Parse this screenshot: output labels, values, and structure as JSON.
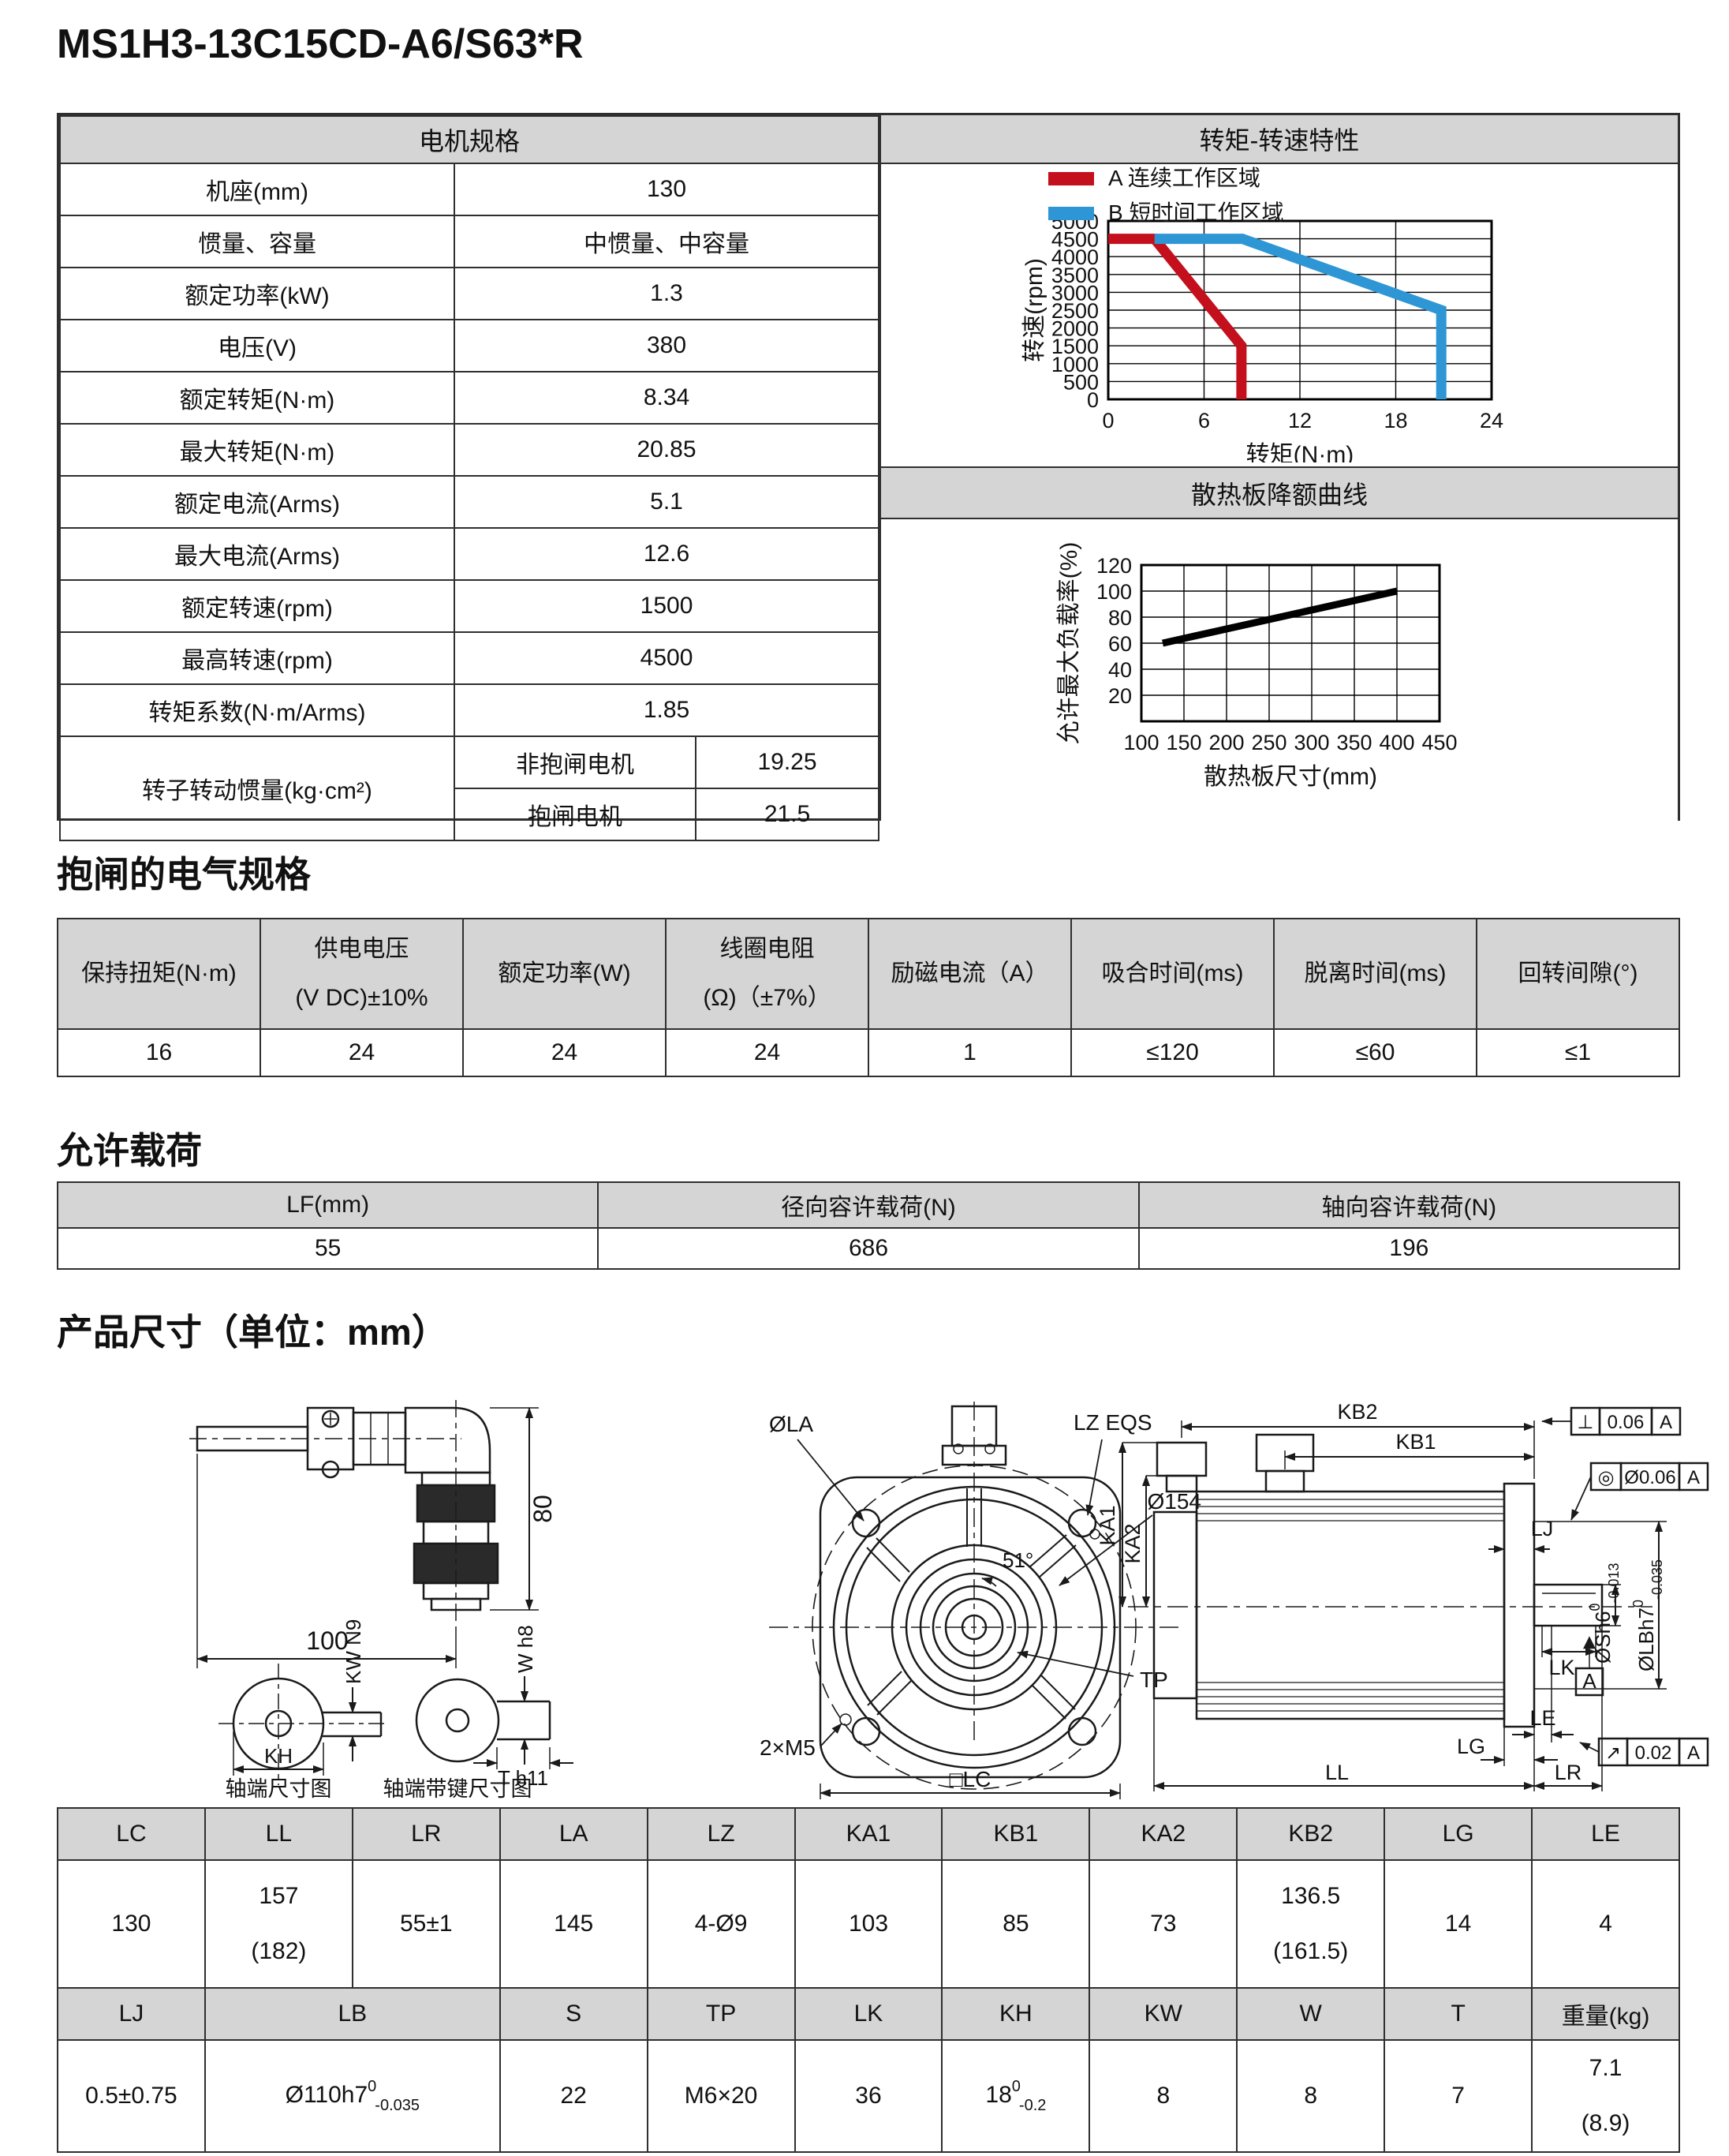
{
  "page_title": "MS1H3-13C15CD-A6/S63*R",
  "motor_spec": {
    "header": "电机规格",
    "rows": [
      {
        "label": "机座(mm)",
        "value": "130"
      },
      {
        "label": "惯量、容量",
        "value": "中惯量、中容量"
      },
      {
        "label": "额定功率(kW)",
        "value": "1.3"
      },
      {
        "label": "电压(V)",
        "value": "380"
      },
      {
        "label": "额定转矩(N·m)",
        "value": "8.34"
      },
      {
        "label": "最大转矩(N·m)",
        "value": "20.85"
      },
      {
        "label": "额定电流(Arms)",
        "value": "5.1"
      },
      {
        "label": "最大电流(Arms)",
        "value": "12.6"
      },
      {
        "label": "额定转速(rpm)",
        "value": "1500"
      },
      {
        "label": "最高转速(rpm)",
        "value": "4500"
      },
      {
        "label": "转矩系数(N·m/Arms)",
        "value": "1.85"
      }
    ],
    "inertia": {
      "label": "转子转动惯量(kg·cm²)",
      "rows": [
        {
          "label": "非抱闸电机",
          "value": "19.25"
        },
        {
          "label": "抱闸电机",
          "value": "21.5"
        }
      ]
    }
  },
  "chart_data": [
    {
      "type": "line",
      "title": "转矩-转速特性",
      "xlabel": "转矩(N·m)",
      "ylabel": "转速(rpm)",
      "xlim": [
        0,
        24
      ],
      "ylim": [
        0,
        5000
      ],
      "xticks": [
        0,
        6,
        12,
        18,
        24
      ],
      "yticks": [
        0,
        500,
        1000,
        1500,
        2000,
        2500,
        3000,
        3500,
        4000,
        4500,
        5000
      ],
      "grid": true,
      "legend_position": "top-left",
      "series": [
        {
          "name": "A 连续工作区域",
          "color": "#c3101c",
          "points": [
            [
              0,
              4500
            ],
            [
              2.9,
              4500
            ],
            [
              8.34,
              1500
            ],
            [
              8.34,
              0
            ]
          ]
        },
        {
          "name": "B 短时间工作区域",
          "color": "#2e96d4",
          "points": [
            [
              2.9,
              4500
            ],
            [
              8.4,
              4500
            ],
            [
              20.85,
              2500
            ],
            [
              20.85,
              0
            ]
          ]
        }
      ]
    },
    {
      "type": "line",
      "title": "散热板降额曲线",
      "xlabel": "散热板尺寸(mm)",
      "ylabel": "允许最大负载率(%)",
      "xlim": [
        100,
        450
      ],
      "ylim": [
        0,
        120
      ],
      "xticks": [
        100,
        150,
        200,
        250,
        300,
        350,
        400,
        450
      ],
      "yticks": [
        20,
        40,
        60,
        80,
        100,
        120
      ],
      "grid": true,
      "series": [
        {
          "color": "#000000",
          "points": [
            [
              125,
              60
            ],
            [
              400,
              100
            ]
          ]
        }
      ]
    }
  ],
  "brake": {
    "title": "抱闸的电气规格",
    "headers": [
      "保持扭矩(N·m)",
      "供电电压\n(V DC)±10%",
      "额定功率(W)",
      "线圈电阻\n(Ω)（±7%）",
      "励磁电流（A）",
      "吸合时间(ms)",
      "脱离时间(ms)",
      "回转间隙(°)"
    ],
    "values": [
      "16",
      "24",
      "24",
      "24",
      "1",
      "≤120",
      "≤60",
      "≤1"
    ]
  },
  "load": {
    "title": "允许载荷",
    "headers": [
      "LF(mm)",
      "径向容许载荷(N)",
      "轴向容许载荷(N)"
    ],
    "values": [
      "55",
      "686",
      "196"
    ]
  },
  "dimensions": {
    "title": "产品尺寸（单位：mm）",
    "row1_headers": [
      "LC",
      "LL",
      "LR",
      "LA",
      "LZ",
      "KA1",
      "KB1",
      "KA2",
      "KB2",
      "LG",
      "LE"
    ],
    "row1_values": [
      "130",
      "157\n(182)",
      "55±1",
      "145",
      "4-Ø9",
      "103",
      "85",
      "73",
      "136.5\n(161.5)",
      "14",
      "4"
    ],
    "row2_headers": [
      "LJ",
      "LB",
      "S",
      "TP",
      "LK",
      "KH",
      "KW",
      "W",
      "T",
      "重量(kg)"
    ],
    "row2_values": [
      "0.5±0.75",
      "22",
      "M6×20",
      "36",
      "8",
      "8",
      "7",
      "7.1\n(8.9)"
    ],
    "lb_value": {
      "base": "Ø110h7",
      "sup": "0",
      "sub": "-0.035"
    },
    "kh_value": {
      "base": "18",
      "sup": "0",
      "sub": "-0.2"
    }
  },
  "drawings": {
    "connector": {
      "dim_width": "100",
      "dim_height": "80"
    },
    "shaft_end": {
      "caption": "轴端尺寸图",
      "kh": "KH",
      "kw": "KW N9"
    },
    "shaft_end_key": {
      "caption": "轴端带键尺寸图",
      "w": "W h8",
      "t": "T h11"
    },
    "front": {
      "la": "ØLA",
      "lz": "LZ EQS",
      "d154": "Ø154",
      "angle": "51°",
      "tp": "TP",
      "m5": "2×M5",
      "lc": "□LC"
    },
    "side": {
      "kb2": "KB2",
      "kb1": "KB1",
      "ka1": "KA1",
      "ka2": "KA2",
      "lj": "LJ",
      "sh6": {
        "base": "ØSh6",
        "sup": "0",
        "sub": "-0.013"
      },
      "lbh7": {
        "base": "ØLBh7",
        "sup": "0",
        "sub": "-0.035"
      },
      "lk": "LK",
      "le": "LE",
      "lg": "LG",
      "ll": "LL",
      "lr": "LR",
      "datum": "A",
      "tol_perp": {
        "sym": "⊥",
        "val": "0.06",
        "ref": "A"
      },
      "tol_conc": {
        "sym": "◎",
        "val": "Ø0.06",
        "ref": "A"
      },
      "tol_runout": {
        "sym": "↗",
        "val": "0.02",
        "ref": "A"
      }
    }
  }
}
